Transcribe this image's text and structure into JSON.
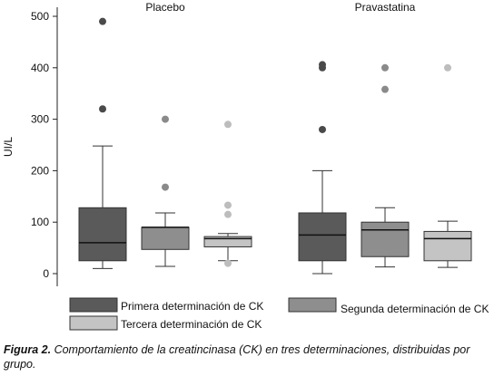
{
  "chart_data": {
    "type": "box",
    "ylabel": "UI/L",
    "ylim": [
      0,
      500
    ],
    "yticks": [
      0,
      100,
      200,
      300,
      400,
      500
    ],
    "grid": false,
    "legend_position": "bottom",
    "groups": [
      {
        "name": "Placebo",
        "boxes": [
          {
            "series": 0,
            "min": 10,
            "q1": 25,
            "median": 60,
            "q3": 128,
            "max": 248,
            "outliers": [
              320,
              490
            ]
          },
          {
            "series": 1,
            "min": 14,
            "q1": 47,
            "median": 90,
            "q3": 90,
            "max": 118,
            "outliers": [
              168,
              300
            ]
          },
          {
            "series": 2,
            "min": 25,
            "q1": 52,
            "median": 68,
            "q3": 72,
            "max": 78,
            "outliers": [
              20,
              115,
              133,
              290
            ]
          }
        ]
      },
      {
        "name": "Pravastatina",
        "boxes": [
          {
            "series": 0,
            "min": 0,
            "q1": 25,
            "median": 75,
            "q3": 118,
            "max": 200,
            "outliers": [
              280,
              400,
              406
            ]
          },
          {
            "series": 1,
            "min": 13,
            "q1": 33,
            "median": 85,
            "q3": 100,
            "max": 128,
            "outliers": [
              358,
              400
            ]
          },
          {
            "series": 2,
            "min": 12,
            "q1": 25,
            "median": 68,
            "q3": 82,
            "max": 102,
            "outliers": [
              400
            ]
          }
        ]
      }
    ],
    "series": [
      {
        "name": "Primera determinación de CK",
        "color": "#5a5a5a",
        "outlier_color": "#4a4a4a"
      },
      {
        "name": "Segunda determinación de CK",
        "color": "#8e8e8e",
        "outlier_color": "#8a8a8a"
      },
      {
        "name": "Tercera determinación de CK",
        "color": "#c4c4c4",
        "outlier_color": "#bdbdbd"
      }
    ]
  },
  "caption": {
    "label": "Figura 2.",
    "text": " Comportamiento de la creatincinasa (CK) en tres determinaciones, distribuidas por grupo."
  }
}
